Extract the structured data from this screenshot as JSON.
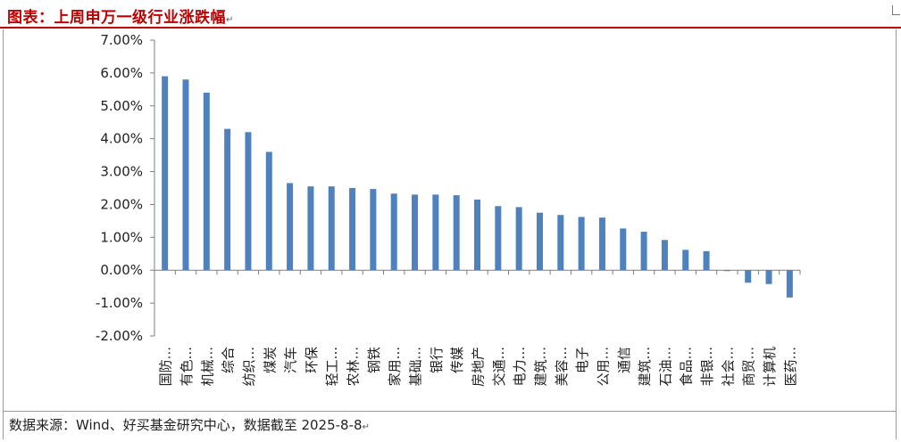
{
  "header": {
    "title": "图表：上周申万一级行业涨跌幅",
    "para_mark": "↵"
  },
  "footer": {
    "source": "数据来源：Wind、好买基金研究中心，数据截至 2025-8-8",
    "para_mark": "↵"
  },
  "chart_data": {
    "type": "bar",
    "title": "",
    "xlabel": "",
    "ylabel": "",
    "ylim": [
      -0.02,
      0.07
    ],
    "yticks": [
      "7.00%",
      "6.00%",
      "5.00%",
      "4.00%",
      "3.00%",
      "2.00%",
      "1.00%",
      "0.00%",
      "-1.00%",
      "-2.00%"
    ],
    "ytick_values": [
      0.07,
      0.06,
      0.05,
      0.04,
      0.03,
      0.02,
      0.01,
      0.0,
      -0.01,
      -0.02
    ],
    "grid": false,
    "legend": "none",
    "bar_color": "#4f81bd",
    "categories": [
      "国防...",
      "有色...",
      "机械...",
      "综合",
      "纺织...",
      "煤炭",
      "汽车",
      "环保",
      "轻工...",
      "农林...",
      "钢铁",
      "家用...",
      "基础...",
      "银行",
      "传媒",
      "房地产",
      "交通...",
      "电力...",
      "建筑...",
      "美容...",
      "电子",
      "公用...",
      "通信",
      "建筑...",
      "石油...",
      "食品...",
      "非银...",
      "社会...",
      "商贸...",
      "计算机",
      "医药..."
    ],
    "values": [
      0.059,
      0.058,
      0.054,
      0.043,
      0.042,
      0.036,
      0.0265,
      0.0255,
      0.0255,
      0.025,
      0.0247,
      0.0233,
      0.023,
      0.023,
      0.0228,
      0.0215,
      0.0195,
      0.0192,
      0.0175,
      0.0168,
      0.0162,
      0.016,
      0.0127,
      0.0117,
      0.0092,
      0.0062,
      0.0058,
      -0.0002,
      -0.0038,
      -0.0042,
      -0.0083
    ]
  }
}
